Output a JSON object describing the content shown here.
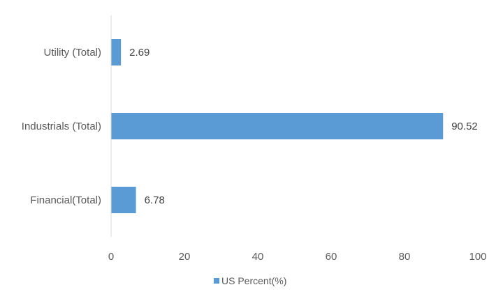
{
  "chart_data": {
    "type": "bar",
    "orientation": "horizontal",
    "categories": [
      "Utility (Total)",
      "Industrials (Total)",
      "Financial(Total)"
    ],
    "series": [
      {
        "name": "US Percent(%)",
        "values": [
          2.69,
          90.52,
          6.78
        ],
        "color": "#5B9BD5"
      }
    ],
    "data_labels": [
      "2.69",
      "90.52",
      "6.78"
    ],
    "xlim": [
      0,
      100
    ],
    "x_ticks": [
      0,
      20,
      40,
      60,
      80,
      100
    ],
    "grid": false,
    "legend_position": "bottom",
    "title": "",
    "xlabel": "",
    "ylabel": ""
  }
}
